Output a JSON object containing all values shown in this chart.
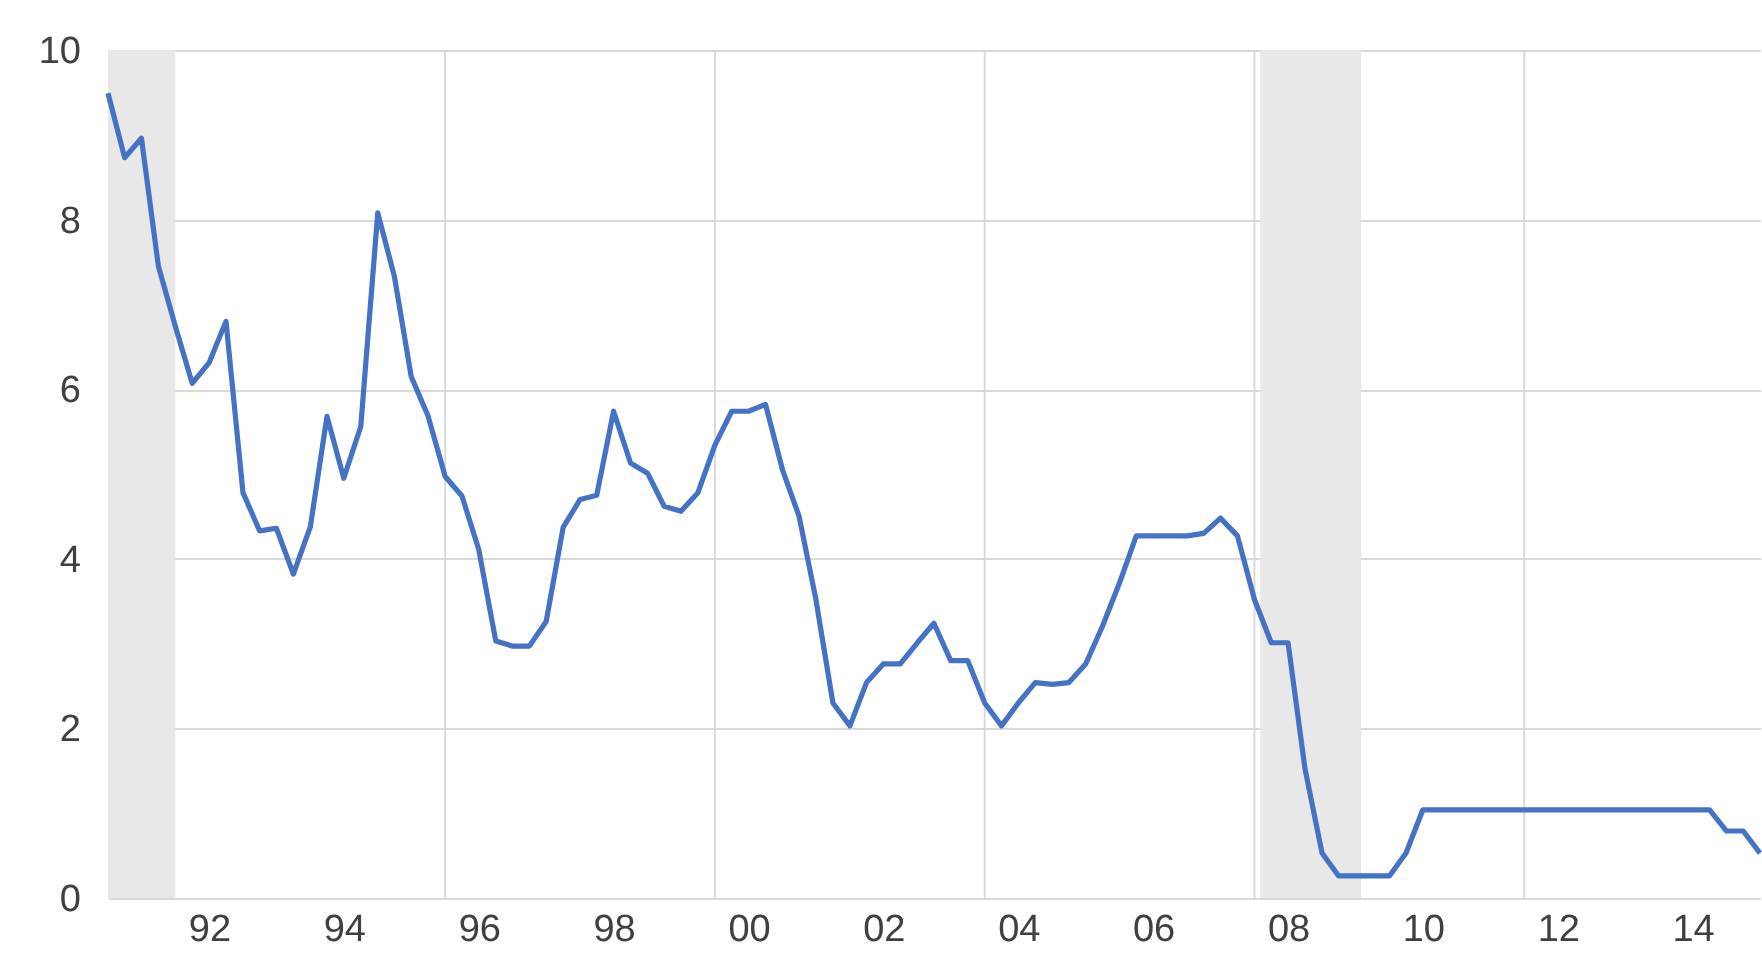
{
  "chart_data": {
    "type": "line",
    "x": [
      "1991-01",
      "1991-04",
      "1991-07",
      "1991-10",
      "1992-01",
      "1992-04",
      "1992-07",
      "1992-10",
      "1993-01",
      "1993-04",
      "1993-07",
      "1993-10",
      "1994-01",
      "1994-04",
      "1994-07",
      "1994-10",
      "1995-01",
      "1995-04",
      "1995-07",
      "1995-10",
      "1996-01",
      "1996-04",
      "1996-07",
      "1996-10",
      "1997-01",
      "1997-04",
      "1997-07",
      "1997-10",
      "1998-01",
      "1998-04",
      "1998-07",
      "1998-10",
      "1999-01",
      "1999-04",
      "1999-07",
      "1999-10",
      "2000-01",
      "2000-04",
      "2000-07",
      "2000-10",
      "2001-01",
      "2001-04",
      "2001-07",
      "2001-10",
      "2002-01",
      "2002-04",
      "2002-07",
      "2002-10",
      "2003-01",
      "2003-04",
      "2003-07",
      "2003-10",
      "2004-01",
      "2004-04",
      "2004-07",
      "2004-10",
      "2005-01",
      "2005-04",
      "2005-07",
      "2005-10",
      "2006-01",
      "2006-04",
      "2006-07",
      "2006-10",
      "2007-01",
      "2007-04",
      "2007-07",
      "2007-10",
      "2008-01",
      "2008-04",
      "2008-07",
      "2008-10",
      "2009-01",
      "2009-04",
      "2009-07",
      "2009-10",
      "2010-01",
      "2010-04",
      "2010-07",
      "2010-10",
      "2011-01",
      "2011-04",
      "2011-07",
      "2011-10",
      "2012-01",
      "2012-04",
      "2012-07",
      "2012-10",
      "2013-01",
      "2013-04",
      "2013-07",
      "2013-10",
      "2014-01",
      "2014-04",
      "2014-07",
      "2014-10",
      "2015-01",
      "2015-04",
      "2015-07"
    ],
    "series": [
      {
        "color": "#4472c4",
        "values": [
          9.49,
          8.73,
          8.96,
          7.45,
          6.74,
          6.07,
          6.31,
          6.8,
          4.78,
          4.33,
          4.36,
          3.82,
          4.38,
          5.68,
          4.95,
          5.56,
          8.08,
          7.33,
          6.15,
          5.68,
          4.97,
          4.74,
          4.11,
          3.03,
          2.97,
          2.97,
          3.26,
          4.37,
          4.7,
          4.75,
          5.74,
          5.13,
          5.01,
          4.62,
          4.56,
          4.78,
          5.34,
          5.74,
          5.74,
          5.82,
          5.05,
          4.5,
          3.52,
          2.3,
          2.03,
          2.54,
          2.76,
          2.76,
          3.01,
          3.24,
          2.8,
          2.8,
          2.3,
          2.03,
          2.3,
          2.54,
          2.52,
          2.54,
          2.76,
          3.21,
          3.72,
          4.27,
          4.27,
          4.27,
          4.27,
          4.3,
          4.48,
          4.27,
          3.52,
          3.01,
          3.01,
          1.52,
          0.53,
          0.26,
          0.26,
          0.26,
          0.26,
          0.53,
          1.04,
          1.04,
          1.04,
          1.04,
          1.04,
          1.04,
          1.04,
          1.04,
          1.04,
          1.04,
          1.04,
          1.04,
          1.04,
          1.04,
          1.04,
          1.04,
          1.04,
          1.04,
          0.79,
          0.79,
          0.53
        ]
      }
    ],
    "xlim": [
      "1991-01",
      "2015-07"
    ],
    "xticks": [
      {
        "value": "1992-07",
        "label": "92"
      },
      {
        "value": "1994-07",
        "label": "94"
      },
      {
        "value": "1996-01",
        "label": null
      },
      {
        "value": "1996-07",
        "label": "96"
      },
      {
        "value": "1998-07",
        "label": "98"
      },
      {
        "value": "2000-01",
        "label": null
      },
      {
        "value": "2000-07",
        "label": "00"
      },
      {
        "value": "2002-07",
        "label": "02"
      },
      {
        "value": "2004-01",
        "label": null
      },
      {
        "value": "2004-07",
        "label": "04"
      },
      {
        "value": "2006-07",
        "label": "06"
      },
      {
        "value": "2008-01",
        "label": null
      },
      {
        "value": "2008-07",
        "label": "08"
      },
      {
        "value": "2010-07",
        "label": "10"
      },
      {
        "value": "2012-01",
        "label": null
      },
      {
        "value": "2012-07",
        "label": "12"
      },
      {
        "value": "2014-07",
        "label": "14"
      }
    ],
    "ylim": [
      0,
      10
    ],
    "yticks": [
      0,
      2,
      4,
      6,
      8,
      10
    ],
    "grid": true,
    "line_style": "solid",
    "marker": "none",
    "bands": [
      {
        "axis": "x",
        "from": "1991-01",
        "to": "1992-01",
        "color": "#e8e8e8"
      },
      {
        "axis": "x",
        "from": "2008-02",
        "to": "2009-08",
        "color": "#e8e8e8"
      }
    ]
  }
}
